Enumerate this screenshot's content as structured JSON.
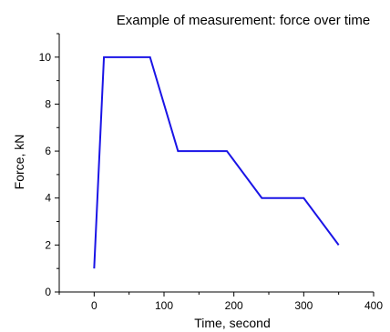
{
  "chart_data": {
    "type": "line",
    "title": "Example of measurement: force over time",
    "xlabel": "Time, second",
    "ylabel": "Force, kN",
    "xlim": [
      -50,
      400
    ],
    "ylim": [
      0,
      11
    ],
    "xticks": [
      0,
      100,
      200,
      300,
      400
    ],
    "yticks": [
      0,
      2,
      4,
      6,
      8,
      10
    ],
    "xtick_labels": [
      "0",
      "100",
      "200",
      "300",
      "400"
    ],
    "ytick_labels": [
      "0",
      "2",
      "4",
      "6",
      "8",
      "10"
    ],
    "grid": false,
    "series": [
      {
        "color": "#1a14e6",
        "x": [
          0,
          14,
          80,
          120,
          190,
          240,
          300,
          350
        ],
        "y": [
          1,
          10,
          10,
          6,
          6,
          4,
          4,
          2
        ]
      }
    ]
  }
}
